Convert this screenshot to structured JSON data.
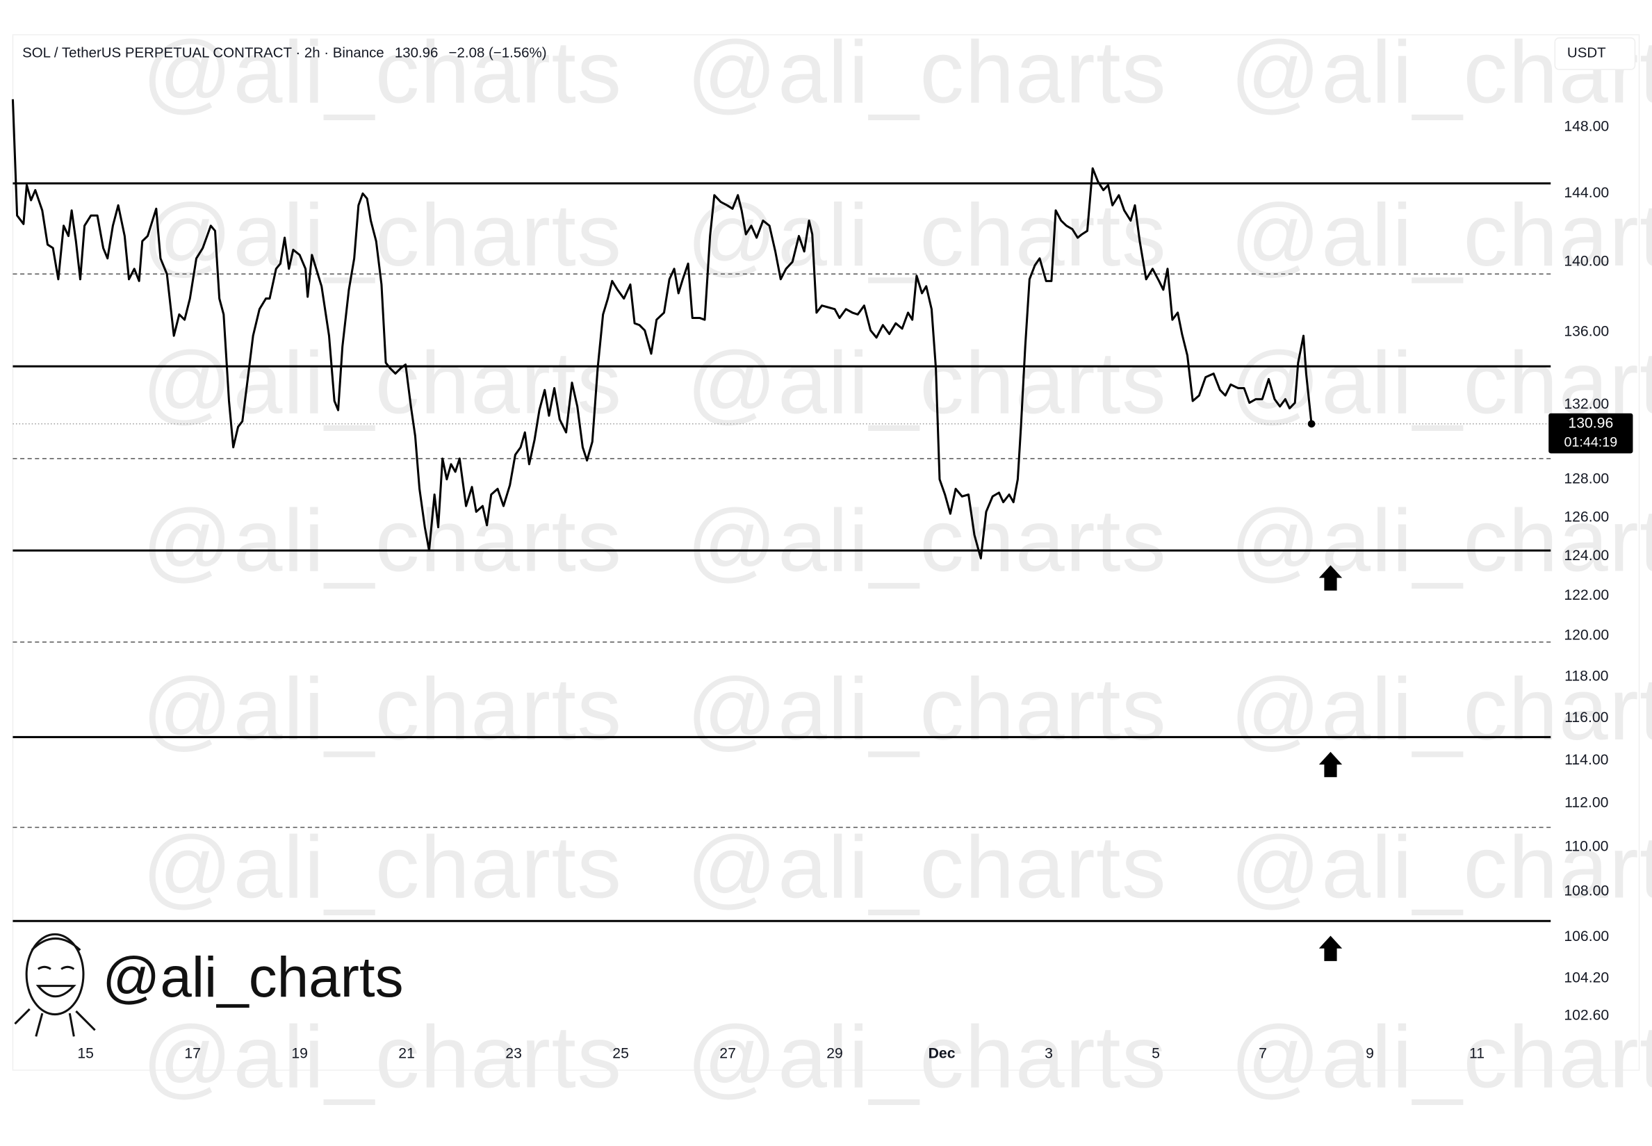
{
  "chart_data": {
    "type": "line",
    "title": "SOL / TetherUS PERPETUAL CONTRACT · 2h · Binance",
    "last_price": 130.96,
    "change": "−2.08 (−1.56%)",
    "y_unit": "USDT",
    "countdown": "01:44:19",
    "watermark": "@ali_charts",
    "color": "#000000",
    "log_scale": true,
    "x": [
      13.64,
      13.72,
      13.84,
      13.9,
      13.98,
      14.06,
      14.19,
      14.29,
      14.39,
      14.49,
      14.59,
      14.68,
      14.74,
      14.82,
      14.9,
      14.98,
      15.1,
      15.22,
      15.33,
      15.41,
      15.51,
      15.61,
      15.73,
      15.81,
      15.91,
      16.0,
      16.06,
      16.16,
      16.32,
      16.4,
      16.52,
      16.65,
      16.75,
      16.85,
      16.95,
      17.07,
      17.19,
      17.34,
      17.42,
      17.5,
      17.58,
      17.68,
      17.76,
      17.85,
      17.93,
      18.03,
      18.13,
      18.25,
      18.37,
      18.44,
      18.56,
      18.64,
      18.72,
      18.8,
      18.88,
      19.0,
      19.11,
      19.15,
      19.23,
      19.31,
      19.41,
      19.55,
      19.65,
      19.72,
      19.8,
      19.92,
      20.02,
      20.1,
      20.18,
      20.26,
      20.33,
      20.43,
      20.53,
      20.61,
      20.69,
      20.79,
      20.89,
      20.98,
      21.08,
      21.16,
      21.24,
      21.34,
      21.42,
      21.52,
      21.59,
      21.67,
      21.75,
      21.83,
      21.91,
      21.99,
      22.11,
      22.22,
      22.3,
      22.42,
      22.5,
      22.58,
      22.7,
      22.81,
      22.93,
      23.03,
      23.13,
      23.21,
      23.29,
      23.39,
      23.48,
      23.58,
      23.66,
      23.76,
      23.86,
      23.98,
      24.09,
      24.19,
      24.29,
      24.37,
      24.47,
      24.57,
      24.67,
      24.76,
      24.84,
      24.94,
      25.06,
      25.18,
      25.26,
      25.35,
      25.45,
      25.57,
      25.67,
      25.81,
      25.91,
      26.0,
      26.08,
      26.16,
      26.26,
      26.34,
      26.48,
      26.57,
      26.67,
      26.75,
      26.87,
      26.99,
      27.09,
      27.19,
      27.26,
      27.34,
      27.44,
      27.54,
      27.66,
      27.78,
      27.89,
      27.99,
      28.09,
      28.21,
      28.33,
      28.43,
      28.52,
      28.58,
      28.66,
      28.76,
      28.88,
      29.0,
      29.09,
      29.21,
      29.33,
      29.43,
      29.55,
      29.67,
      29.78,
      29.9,
      30.02,
      30.14,
      30.26,
      30.37,
      30.45,
      30.53,
      30.63,
      30.71,
      30.81,
      30.89,
      30.96,
      31.06,
      31.16,
      31.26,
      31.38,
      31.5,
      31.61,
      31.73,
      31.83,
      31.95,
      32.07,
      32.15,
      32.26,
      32.34,
      32.42,
      32.48,
      32.56,
      32.64,
      32.74,
      32.83,
      32.95,
      33.05,
      33.13,
      33.23,
      33.33,
      33.44,
      33.54,
      33.62,
      33.72,
      33.82,
      33.92,
      34.02,
      34.11,
      34.19,
      34.31,
      34.41,
      34.53,
      34.61,
      34.7,
      34.82,
      34.94,
      35.06,
      35.14,
      35.22,
      35.31,
      35.41,
      35.49,
      35.59,
      35.69,
      35.81,
      35.93,
      36.08,
      36.2,
      36.3,
      36.4,
      36.54,
      36.65,
      36.75,
      36.87,
      36.99,
      37.11,
      37.22,
      37.32,
      37.42,
      37.5,
      37.6,
      37.66,
      37.76,
      37.81,
      37.91
    ],
    "values": [
      149.7,
      142.7,
      142.2,
      144.5,
      143.6,
      144.2,
      143.0,
      141.0,
      140.8,
      139.0,
      142.1,
      141.5,
      143.0,
      141.2,
      139.0,
      142.1,
      142.7,
      142.7,
      140.8,
      140.2,
      142.1,
      143.3,
      141.5,
      139.0,
      139.6,
      138.9,
      141.2,
      141.5,
      143.1,
      140.2,
      139.3,
      135.8,
      137.0,
      136.7,
      137.9,
      140.2,
      140.8,
      142.1,
      141.8,
      137.9,
      137.0,
      132.2,
      129.7,
      130.8,
      131.1,
      133.4,
      135.8,
      137.3,
      137.9,
      137.9,
      139.6,
      139.9,
      141.4,
      139.6,
      140.7,
      140.4,
      139.6,
      138.0,
      140.4,
      139.6,
      138.6,
      135.8,
      132.2,
      131.7,
      135.2,
      138.4,
      140.2,
      143.3,
      144.0,
      143.7,
      142.4,
      141.2,
      138.7,
      134.3,
      134.0,
      133.7,
      134.0,
      134.2,
      131.9,
      130.3,
      127.5,
      125.5,
      124.3,
      127.2,
      125.5,
      129.1,
      128.0,
      128.8,
      128.4,
      129.1,
      126.6,
      127.6,
      126.3,
      126.6,
      125.6,
      127.2,
      127.5,
      126.6,
      127.7,
      129.3,
      129.7,
      130.5,
      128.8,
      130.1,
      131.7,
      132.8,
      131.4,
      132.9,
      131.2,
      130.5,
      133.2,
      131.9,
      129.7,
      129.0,
      130.0,
      134.0,
      137.0,
      137.9,
      138.9,
      138.4,
      137.9,
      138.7,
      136.5,
      136.4,
      136.1,
      134.8,
      136.7,
      137.1,
      139.0,
      139.6,
      138.2,
      139.0,
      139.9,
      136.8,
      136.8,
      136.7,
      141.5,
      143.9,
      143.5,
      143.3,
      143.1,
      143.9,
      143.0,
      141.6,
      142.1,
      141.4,
      142.4,
      142.1,
      140.6,
      139.0,
      139.6,
      140.0,
      141.5,
      140.6,
      142.4,
      141.6,
      137.1,
      137.5,
      137.4,
      137.3,
      136.8,
      137.3,
      137.1,
      137.0,
      137.5,
      136.1,
      135.7,
      136.4,
      135.9,
      136.5,
      136.2,
      137.1,
      136.7,
      139.2,
      138.2,
      138.6,
      137.3,
      134.0,
      128.0,
      127.2,
      126.2,
      127.5,
      127.1,
      127.2,
      125.1,
      123.9,
      126.3,
      127.1,
      127.3,
      126.8,
      127.2,
      126.8,
      128.0,
      130.8,
      135.2,
      139.0,
      139.8,
      140.2,
      138.9,
      138.9,
      143.0,
      142.4,
      142.1,
      141.9,
      141.4,
      141.6,
      141.8,
      145.5,
      144.7,
      144.2,
      144.5,
      143.3,
      143.9,
      143.0,
      142.4,
      143.3,
      141.2,
      139.0,
      139.6,
      138.9,
      138.4,
      139.6,
      136.7,
      137.1,
      135.9,
      134.7,
      132.2,
      132.5,
      133.5,
      133.7,
      132.8,
      132.5,
      133.1,
      132.9,
      132.9,
      132.1,
      132.3,
      132.3,
      133.4,
      132.3,
      131.9,
      132.3,
      131.8,
      132.1,
      134.3,
      135.8,
      133.7,
      130.96
    ],
    "xlim": [
      13.64,
      42.38
    ],
    "xticks": [
      15,
      17,
      19,
      21,
      23,
      25,
      27,
      29,
      {
        "value": 31,
        "label": "Dec"
      },
      {
        "value": 33,
        "label": "3"
      },
      {
        "value": 35,
        "label": "5"
      },
      {
        "value": 37,
        "label": "7"
      },
      {
        "value": 39,
        "label": "9"
      },
      {
        "value": 41,
        "label": "11"
      }
    ],
    "ylim": [
      101.7,
      153.6
    ],
    "yticks": [
      {
        "value": 148,
        "label": "148.00"
      },
      {
        "value": 144,
        "label": "144.00"
      },
      {
        "value": 140,
        "label": "140.00"
      },
      {
        "value": 136,
        "label": "136.00"
      },
      {
        "value": 132,
        "label": "132.00"
      },
      {
        "value": 128,
        "label": "128.00"
      },
      {
        "value": 126,
        "label": "126.00"
      },
      {
        "value": 124,
        "label": "124.00"
      },
      {
        "value": 122,
        "label": "122.00"
      },
      {
        "value": 120,
        "label": "120.00"
      },
      {
        "value": 118,
        "label": "118.00"
      },
      {
        "value": 116,
        "label": "116.00"
      },
      {
        "value": 114,
        "label": "114.00"
      },
      {
        "value": 112,
        "label": "112.00"
      },
      {
        "value": 110,
        "label": "110.00"
      },
      {
        "value": 108,
        "label": "108.00"
      },
      {
        "value": 106,
        "label": "106.00"
      },
      {
        "value": 104.2,
        "label": "104.20"
      },
      {
        "value": 102.6,
        "label": "102.60"
      }
    ],
    "solid_levels": [
      144.6,
      134.1,
      124.3,
      115.1,
      106.7
    ],
    "dashed_levels": [
      139.3,
      129.1,
      119.7,
      110.9
    ],
    "arrow_levels": [
      124.3,
      115.1,
      106.7
    ]
  }
}
